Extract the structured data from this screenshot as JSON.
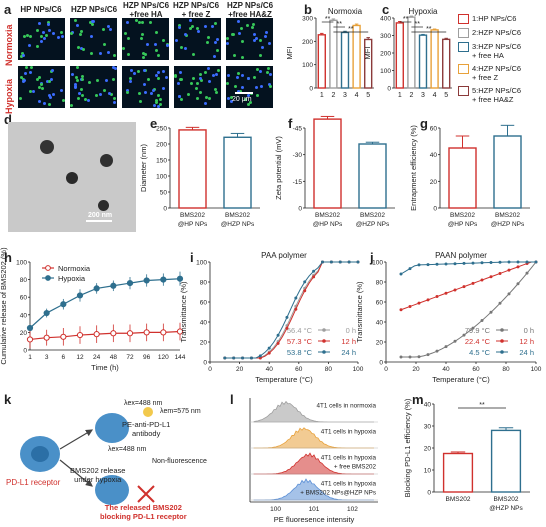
{
  "panel_letters": {
    "a": "a",
    "b": "b",
    "c": "c",
    "d": "d",
    "e": "e",
    "f": "f",
    "g": "g",
    "h": "h",
    "i": "i",
    "j": "j",
    "k": "k",
    "l": "l",
    "m": "m"
  },
  "panel_a": {
    "columns": [
      "HP NPs/C6",
      "HZP NPs/C6",
      "HZP NPs/C6\n+free HA",
      "HZP NPs/C6\n+ free Z",
      "HZP NPs/C6\n+free HA&Z"
    ],
    "rows": [
      "Normoxia",
      "Hypoxia"
    ],
    "scale_bar": "20 μm"
  },
  "panel_d": {
    "scale_bar": "200 nm"
  },
  "legend_bc": {
    "items": [
      {
        "label": "1:HP NPs/C6",
        "color": "#d0312d"
      },
      {
        "label": "2:HZP NPs/C6",
        "color": "#9e9e9e"
      },
      {
        "label": "3:HZP NPs/C6\n+ free HA",
        "color": "#2e6f8e"
      },
      {
        "label": "4:HZP NPs/C6\n+ free Z",
        "color": "#e8a13a"
      },
      {
        "label": "5:HZP NPs/C6\n+ free HA&Z",
        "color": "#8b3a3a"
      }
    ]
  },
  "panel_k": {
    "ex1": "λex=488 nm",
    "em1": "λem=575 nm",
    "antibody": "PE-anti-PD-L1\nantibody",
    "ex2": "λex=488 nm",
    "nonfluor": "Non-fluorescence",
    "release": "BMS202 release\nunder hypoxia",
    "receptor": "PD-L1 receptor",
    "blocking": "The released BMS202\nblocking PD-L1 receptor"
  },
  "chart_data": [
    {
      "panel": "b",
      "type": "bar",
      "title": "Normoxia",
      "ylabel": "MFI",
      "categories": [
        "1",
        "2",
        "3",
        "4",
        "5"
      ],
      "values": [
        228,
        290,
        238,
        268,
        208
      ],
      "errors": [
        6,
        6,
        5,
        6,
        8
      ],
      "ylim": [
        0,
        300
      ],
      "yticks": [
        0,
        100,
        200,
        300
      ],
      "colors": [
        "#d0312d",
        "#9e9e9e",
        "#2e6f8e",
        "#e8a13a",
        "#8b3a3a"
      ],
      "sig": [
        {
          "a": 1,
          "b": 2,
          "label": "**"
        },
        {
          "a": 2,
          "b": 3,
          "label": "**"
        },
        {
          "a": 2,
          "b": 5,
          "label": "**"
        }
      ]
    },
    {
      "panel": "c",
      "type": "bar",
      "title": "Hypoxia",
      "ylabel": "MFI",
      "categories": [
        "1",
        "2",
        "3",
        "4",
        "5"
      ],
      "values": [
        372,
        405,
        302,
        332,
        278
      ],
      "errors": [
        8,
        6,
        4,
        5,
        6
      ],
      "ylim": [
        0,
        400
      ],
      "yticks": [
        0,
        100,
        200,
        300,
        400
      ],
      "colors": [
        "#d0312d",
        "#9e9e9e",
        "#2e6f8e",
        "#e8a13a",
        "#8b3a3a"
      ],
      "sig": [
        {
          "a": 1,
          "b": 2,
          "label": "**"
        },
        {
          "a": 2,
          "b": 3,
          "label": "**"
        },
        {
          "a": 2,
          "b": 5,
          "label": "**"
        }
      ]
    },
    {
      "panel": "e",
      "type": "bar",
      "ylabel": "Diameter (nm)",
      "categories": [
        "BMS202\n@HP NPs",
        "BMS202\n@HZP NPs"
      ],
      "values": [
        244,
        221
      ],
      "errors": [
        8,
        12
      ],
      "ylim": [
        0,
        250
      ],
      "yticks": [
        0,
        50,
        100,
        150,
        200,
        250
      ],
      "colors": [
        "#d0312d",
        "#2e6f8e"
      ]
    },
    {
      "panel": "f",
      "type": "bar",
      "ylabel": "Zeta potential (mV)",
      "categories": [
        "BMS202\n@HP NPs",
        "BMS202\n@HZP NPs"
      ],
      "values": [
        -50,
        -36
      ],
      "errors": [
        1.5,
        1
      ],
      "ylim": [
        0,
        -45
      ],
      "yticks": [
        0,
        -15,
        -30,
        -45
      ],
      "colors": [
        "#d0312d",
        "#2e6f8e"
      ]
    },
    {
      "panel": "g",
      "type": "bar",
      "ylabel": "Entrapment efficiency (%)",
      "categories": [
        "BMS202\n@HP NPs",
        "BMS202\n@HZP NPs"
      ],
      "values": [
        45,
        54
      ],
      "errors": [
        9,
        8
      ],
      "ylim": [
        0,
        60
      ],
      "yticks": [
        0,
        20,
        40,
        60
      ],
      "colors": [
        "#d0312d",
        "#2e6f8e"
      ]
    },
    {
      "panel": "h",
      "type": "line",
      "ylabel": "Cumulative release of BMS202 (%)",
      "xlabel": "Time (h)",
      "categories": [
        "1",
        "3",
        "6",
        "12",
        "24",
        "48",
        "72",
        "96",
        "120",
        "144"
      ],
      "ylim": [
        0,
        100
      ],
      "yticks": [
        0,
        20,
        40,
        60,
        80,
        100
      ],
      "series": [
        {
          "name": "Normoxia",
          "color": "#d0312d",
          "values": [
            12,
            14,
            15,
            17,
            18,
            19,
            19,
            20,
            20,
            21
          ],
          "errors": [
            10,
            9,
            10,
            10,
            10,
            10,
            10,
            10,
            10,
            10
          ]
        },
        {
          "name": "Hypoxia",
          "color": "#2e6f8e",
          "values": [
            25,
            42,
            52,
            62,
            70,
            73,
            76,
            79,
            80,
            81
          ],
          "errors": [
            3,
            5,
            6,
            7,
            6,
            6,
            7,
            7,
            7,
            8
          ]
        }
      ]
    },
    {
      "panel": "i",
      "type": "line",
      "title": "PAA polymer",
      "ylabel": "Transmittance (%)",
      "xlabel": "Temperature (°C)",
      "xlim": [
        0,
        100
      ],
      "ylim": [
        0,
        100
      ],
      "xticks": [
        0,
        20,
        40,
        60,
        80,
        100
      ],
      "yticks": [
        0,
        20,
        40,
        60,
        80,
        100
      ],
      "series": [
        {
          "name": "0 h",
          "temp": "56.4 °C",
          "color": "#9e9e9e",
          "mid": 56.4
        },
        {
          "name": "12 h",
          "temp": "57.3 °C",
          "color": "#d0312d",
          "mid": 57.3
        },
        {
          "name": "24 h",
          "temp": "53.8 °C",
          "color": "#2e6f8e",
          "mid": 53.8
        }
      ]
    },
    {
      "panel": "j",
      "type": "line",
      "title": "PAAN polymer",
      "ylabel": "Transmittance (%)",
      "xlabel": "Temperature (°C)",
      "xlim": [
        0,
        100
      ],
      "ylim": [
        0,
        100
      ],
      "xticks": [
        0,
        20,
        40,
        60,
        80,
        100
      ],
      "yticks": [
        0,
        20,
        40,
        60,
        80,
        100
      ],
      "series": [
        {
          "name": "0 h",
          "temp": "79.9 °C",
          "color": "#777777"
        },
        {
          "name": "12 h",
          "temp": "22.4 °C",
          "color": "#d0312d"
        },
        {
          "name": "24 h",
          "temp": "4.5 °C",
          "color": "#2e6f8e"
        }
      ]
    },
    {
      "panel": "l",
      "type": "area",
      "xlabel": "PE fluoresence intensity",
      "xticks": [
        "10^0",
        "10^1",
        "10^2"
      ],
      "series": [
        {
          "name": "4T1 cells in normoxia",
          "color": "#9e9e9e"
        },
        {
          "name": "4T1 cells in hypoxia",
          "color": "#e8a13a"
        },
        {
          "name": "4T1 cells in hypoxia\n+ free BMS202",
          "color": "#d0312d"
        },
        {
          "name": "4T1 cells in hypoxia\n+ BMS202 NPs@HZP NPs",
          "color": "#5b8fd6"
        }
      ]
    },
    {
      "panel": "m",
      "type": "bar",
      "ylabel": "Blocking PD-L1 efficiency (%)",
      "categories": [
        "BMS202",
        "BMS202\n@HZP NPs"
      ],
      "values": [
        17.5,
        28
      ],
      "errors": [
        0.7,
        1.2
      ],
      "ylim": [
        0,
        40
      ],
      "yticks": [
        0,
        10,
        20,
        30,
        40
      ],
      "colors": [
        "#d0312d",
        "#2e6f8e"
      ],
      "sig": [
        {
          "a": 1,
          "b": 2,
          "label": "**"
        }
      ]
    }
  ]
}
